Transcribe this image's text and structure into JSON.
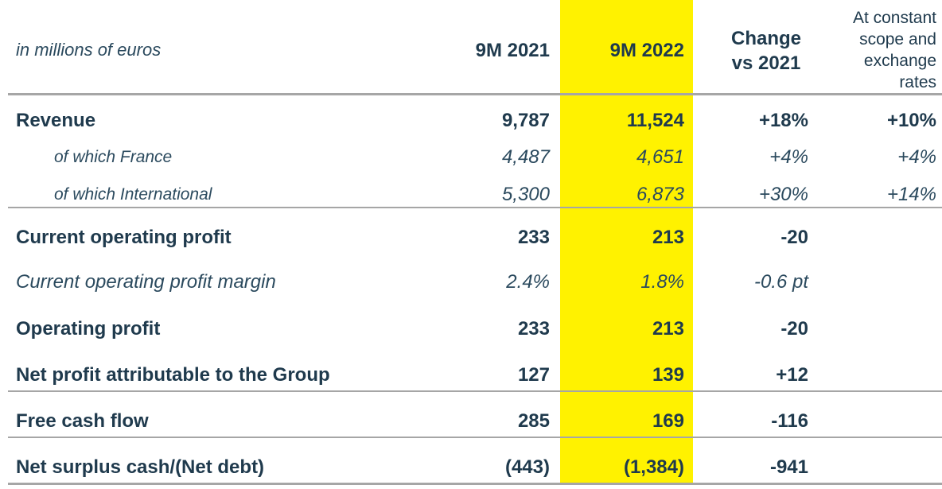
{
  "header": {
    "label": "in millions of euros",
    "col_2021": "9M 2021",
    "col_2022": "9M 2022",
    "col_change_line1": "Change",
    "col_change_line2": "vs 2021",
    "col_const_1": "At constant",
    "col_const_2": "scope and",
    "col_const_3": "exchange",
    "col_const_4": "rates"
  },
  "rows": [
    {
      "label": "Revenue",
      "v2021": "9,787",
      "v2022": "11,524",
      "change": "+18%",
      "const": "+10%"
    },
    {
      "label": "of which France",
      "v2021": "4,487",
      "v2022": "4,651",
      "change": "+4%",
      "const": "+4%"
    },
    {
      "label": "of which International",
      "v2021": "5,300",
      "v2022": "6,873",
      "change": "+30%",
      "const": "+14%"
    },
    {
      "label": "Current operating profit",
      "v2021": "233",
      "v2022": "213",
      "change": "-20",
      "const": ""
    },
    {
      "label": "Current operating profit margin",
      "v2021": "2.4%",
      "v2022": "1.8%",
      "change": "-0.6 pt",
      "const": ""
    },
    {
      "label": "Operating profit",
      "v2021": "233",
      "v2022": "213",
      "change": "-20",
      "const": ""
    },
    {
      "label": "Net profit attributable to the Group",
      "v2021": "127",
      "v2022": "139",
      "change": "+12",
      "const": ""
    },
    {
      "label": "Free cash flow",
      "v2021": "285",
      "v2022": "169",
      "change": "-116",
      "const": ""
    },
    {
      "label": "Net surplus cash/(Net debt)",
      "v2021": "(443)",
      "v2022": "(1,384)",
      "change": "-941",
      "const": ""
    }
  ],
  "colors": {
    "highlight": "#fff200",
    "text": "#1f3a4d",
    "rule": "#a6a6a6"
  }
}
